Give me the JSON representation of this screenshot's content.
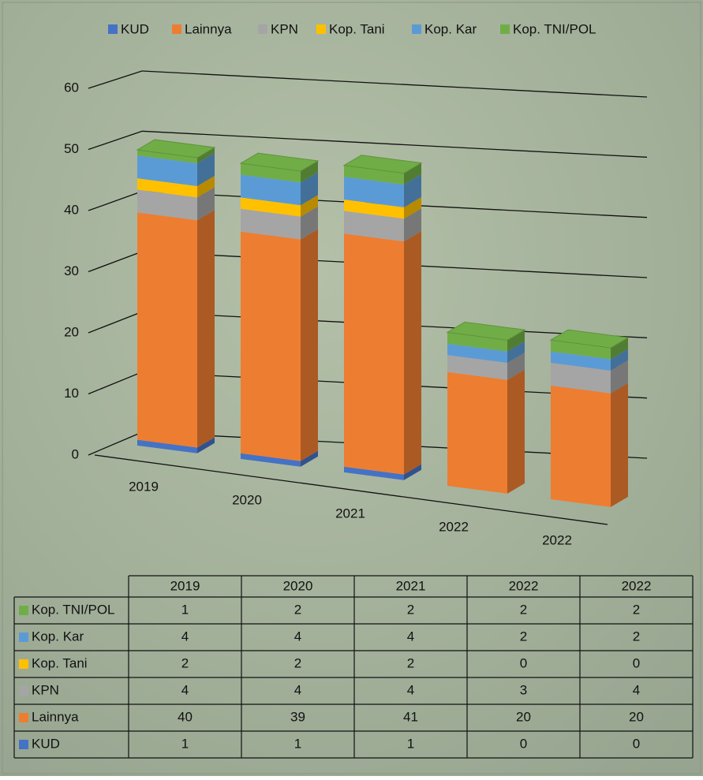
{
  "chart_data": {
    "type": "bar3d_stacked",
    "categories": [
      "2019",
      "2020",
      "2021",
      "2022",
      "2022"
    ],
    "series": [
      {
        "name": "KUD",
        "color": "#4472c4",
        "values": [
          1,
          1,
          1,
          0,
          0
        ]
      },
      {
        "name": "Lainnya",
        "color": "#ed7d31",
        "values": [
          40,
          39,
          41,
          20,
          20
        ]
      },
      {
        "name": "KPN",
        "color": "#a5a5a5",
        "values": [
          4,
          4,
          4,
          3,
          4
        ]
      },
      {
        "name": "Kop. Tani",
        "color": "#ffc000",
        "values": [
          2,
          2,
          2,
          0,
          0
        ]
      },
      {
        "name": "Kop. Kar",
        "color": "#5b9bd5",
        "values": [
          4,
          4,
          4,
          2,
          2
        ]
      },
      {
        "name": "Kop. TNI/POL",
        "color": "#70ad47",
        "values": [
          1,
          2,
          2,
          2,
          2
        ]
      }
    ],
    "ylim": [
      0,
      60
    ],
    "yticks": [
      0,
      10,
      20,
      30,
      40,
      50,
      60
    ],
    "grid": true,
    "legend": "top",
    "data_table": true
  }
}
